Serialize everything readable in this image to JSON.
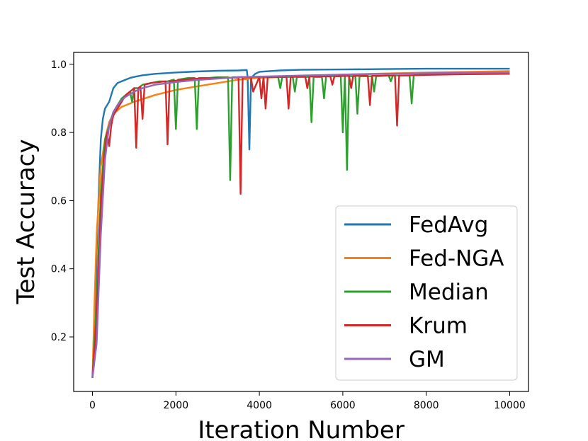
{
  "chart_data": {
    "type": "line",
    "title": "",
    "xlabel": "Iteration Number",
    "ylabel": "Test Accuracy",
    "xlim": [
      -450,
      10450
    ],
    "ylim": [
      0.04,
      1.035
    ],
    "xticks": [
      0,
      2000,
      4000,
      6000,
      8000,
      10000
    ],
    "xtick_labels": [
      "0",
      "2000",
      "4000",
      "6000",
      "8000",
      "10000"
    ],
    "yticks": [
      0.2,
      0.4,
      0.6,
      0.8,
      1.0
    ],
    "ytick_labels": [
      "0.2",
      "0.4",
      "0.6",
      "0.8",
      "1.0"
    ],
    "grid": false,
    "legend": "lower-right",
    "series": [
      {
        "name": "FedAvg",
        "color": "#1f77b4",
        "points": [
          [
            0,
            0.08
          ],
          [
            50,
            0.15
          ],
          [
            100,
            0.45
          ],
          [
            150,
            0.62
          ],
          [
            200,
            0.78
          ],
          [
            250,
            0.84
          ],
          [
            300,
            0.87
          ],
          [
            400,
            0.89
          ],
          [
            500,
            0.93
          ],
          [
            600,
            0.945
          ],
          [
            700,
            0.95
          ],
          [
            800,
            0.955
          ],
          [
            900,
            0.96
          ],
          [
            1000,
            0.963
          ],
          [
            1200,
            0.968
          ],
          [
            1500,
            0.972
          ],
          [
            2000,
            0.976
          ],
          [
            2500,
            0.979
          ],
          [
            3000,
            0.981
          ],
          [
            3500,
            0.982
          ],
          [
            3700,
            0.983
          ],
          [
            3720,
            0.96
          ],
          [
            3760,
            0.75
          ],
          [
            3800,
            0.96
          ],
          [
            3900,
            0.972
          ],
          [
            4000,
            0.978
          ],
          [
            4500,
            0.982
          ],
          [
            5000,
            0.984
          ],
          [
            6000,
            0.985
          ],
          [
            7000,
            0.986
          ],
          [
            8000,
            0.987
          ],
          [
            9000,
            0.987
          ],
          [
            10000,
            0.987
          ]
        ]
      },
      {
        "name": "Fed-NGA",
        "color": "#ff7f0e",
        "points": [
          [
            0,
            0.08
          ],
          [
            50,
            0.3
          ],
          [
            100,
            0.5
          ],
          [
            200,
            0.7
          ],
          [
            300,
            0.78
          ],
          [
            400,
            0.83
          ],
          [
            500,
            0.855
          ],
          [
            700,
            0.875
          ],
          [
            1000,
            0.89
          ],
          [
            1500,
            0.91
          ],
          [
            2000,
            0.925
          ],
          [
            2500,
            0.935
          ],
          [
            3000,
            0.945
          ],
          [
            3500,
            0.955
          ],
          [
            4000,
            0.96
          ],
          [
            5000,
            0.965
          ],
          [
            6000,
            0.97
          ],
          [
            7000,
            0.973
          ],
          [
            8000,
            0.976
          ],
          [
            9000,
            0.978
          ],
          [
            10000,
            0.98
          ]
        ]
      },
      {
        "name": "Median",
        "color": "#2ca02c",
        "points": [
          [
            0,
            0.08
          ],
          [
            100,
            0.3
          ],
          [
            200,
            0.62
          ],
          [
            300,
            0.78
          ],
          [
            400,
            0.82
          ],
          [
            500,
            0.86
          ],
          [
            600,
            0.88
          ],
          [
            700,
            0.9
          ],
          [
            800,
            0.91
          ],
          [
            900,
            0.92
          ],
          [
            950,
            0.89
          ],
          [
            1000,
            0.93
          ],
          [
            1100,
            0.93
          ],
          [
            1200,
            0.94
          ],
          [
            1400,
            0.945
          ],
          [
            1600,
            0.95
          ],
          [
            1800,
            0.95
          ],
          [
            1950,
            0.955
          ],
          [
            2000,
            0.81
          ],
          [
            2050,
            0.955
          ],
          [
            2300,
            0.96
          ],
          [
            2450,
            0.96
          ],
          [
            2500,
            0.81
          ],
          [
            2550,
            0.96
          ],
          [
            2800,
            0.96
          ],
          [
            3000,
            0.962
          ],
          [
            3250,
            0.962
          ],
          [
            3300,
            0.66
          ],
          [
            3350,
            0.962
          ],
          [
            3700,
            0.963
          ],
          [
            4000,
            0.963
          ],
          [
            4450,
            0.963
          ],
          [
            4500,
            0.93
          ],
          [
            4550,
            0.963
          ],
          [
            4800,
            0.963
          ],
          [
            4850,
            0.92
          ],
          [
            4900,
            0.963
          ],
          [
            5200,
            0.963
          ],
          [
            5250,
            0.83
          ],
          [
            5300,
            0.963
          ],
          [
            5500,
            0.963
          ],
          [
            5550,
            0.9
          ],
          [
            5600,
            0.965
          ],
          [
            5950,
            0.965
          ],
          [
            6000,
            0.8
          ],
          [
            6050,
            0.965
          ],
          [
            6100,
            0.69
          ],
          [
            6150,
            0.965
          ],
          [
            6300,
            0.965
          ],
          [
            6350,
            0.855
          ],
          [
            6400,
            0.965
          ],
          [
            6700,
            0.965
          ],
          [
            6750,
            0.92
          ],
          [
            6800,
            0.965
          ],
          [
            7100,
            0.967
          ],
          [
            7150,
            0.95
          ],
          [
            7200,
            0.967
          ],
          [
            7600,
            0.967
          ],
          [
            7650,
            0.885
          ],
          [
            7700,
            0.968
          ],
          [
            8000,
            0.97
          ],
          [
            9000,
            0.972
          ],
          [
            10000,
            0.974
          ]
        ]
      },
      {
        "name": "Krum",
        "color": "#d62728",
        "points": [
          [
            0,
            0.08
          ],
          [
            100,
            0.25
          ],
          [
            200,
            0.58
          ],
          [
            300,
            0.75
          ],
          [
            350,
            0.8
          ],
          [
            400,
            0.76
          ],
          [
            450,
            0.82
          ],
          [
            500,
            0.85
          ],
          [
            600,
            0.87
          ],
          [
            700,
            0.89
          ],
          [
            800,
            0.91
          ],
          [
            900,
            0.92
          ],
          [
            1000,
            0.93
          ],
          [
            1050,
            0.755
          ],
          [
            1100,
            0.93
          ],
          [
            1150,
            0.935
          ],
          [
            1200,
            0.84
          ],
          [
            1250,
            0.94
          ],
          [
            1400,
            0.945
          ],
          [
            1600,
            0.948
          ],
          [
            1750,
            0.95
          ],
          [
            1800,
            0.765
          ],
          [
            1850,
            0.95
          ],
          [
            2200,
            0.955
          ],
          [
            2500,
            0.958
          ],
          [
            3000,
            0.96
          ],
          [
            3500,
            0.961
          ],
          [
            3550,
            0.62
          ],
          [
            3600,
            0.961
          ],
          [
            3800,
            0.962
          ],
          [
            3850,
            0.92
          ],
          [
            4000,
            0.963
          ],
          [
            4050,
            0.9
          ],
          [
            4100,
            0.963
          ],
          [
            4150,
            0.87
          ],
          [
            4200,
            0.963
          ],
          [
            4650,
            0.963
          ],
          [
            4700,
            0.87
          ],
          [
            4750,
            0.963
          ],
          [
            5100,
            0.964
          ],
          [
            5150,
            0.93
          ],
          [
            5200,
            0.964
          ],
          [
            5700,
            0.965
          ],
          [
            5750,
            0.94
          ],
          [
            5800,
            0.965
          ],
          [
            6150,
            0.966
          ],
          [
            6200,
            0.93
          ],
          [
            6250,
            0.966
          ],
          [
            6600,
            0.966
          ],
          [
            6650,
            0.88
          ],
          [
            6700,
            0.966
          ],
          [
            7250,
            0.967
          ],
          [
            7300,
            0.82
          ],
          [
            7350,
            0.967
          ],
          [
            7700,
            0.968
          ],
          [
            8000,
            0.969
          ],
          [
            9000,
            0.971
          ],
          [
            10000,
            0.972
          ]
        ]
      },
      {
        "name": "GM",
        "color": "#9467bd",
        "points": [
          [
            0,
            0.08
          ],
          [
            100,
            0.18
          ],
          [
            200,
            0.5
          ],
          [
            300,
            0.72
          ],
          [
            400,
            0.82
          ],
          [
            500,
            0.86
          ],
          [
            600,
            0.88
          ],
          [
            700,
            0.895
          ],
          [
            800,
            0.905
          ],
          [
            1000,
            0.92
          ],
          [
            1200,
            0.93
          ],
          [
            1500,
            0.94
          ],
          [
            2000,
            0.948
          ],
          [
            2500,
            0.954
          ],
          [
            3000,
            0.958
          ],
          [
            3500,
            0.962
          ],
          [
            4000,
            0.964
          ],
          [
            5000,
            0.967
          ],
          [
            6000,
            0.97
          ],
          [
            7000,
            0.972
          ],
          [
            8000,
            0.974
          ],
          [
            9000,
            0.975
          ],
          [
            10000,
            0.976
          ]
        ]
      }
    ]
  }
}
